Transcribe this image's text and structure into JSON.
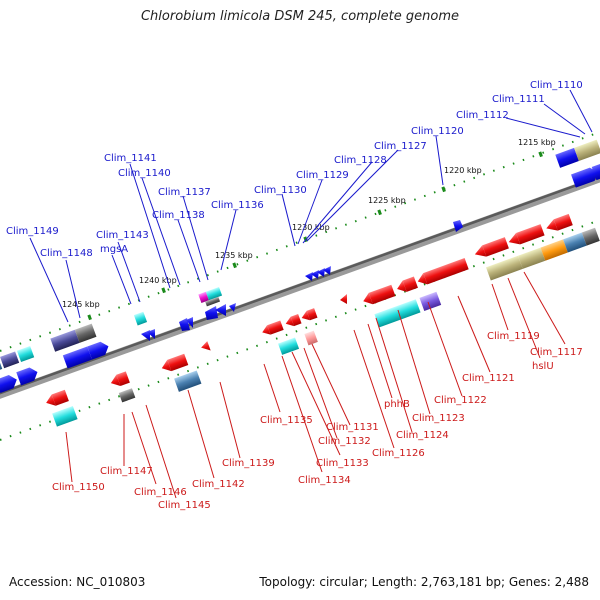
{
  "title": "Chlorobium limicola DSM 245, complete genome",
  "accession": "Accession: NC_010803",
  "summary": "Topology: circular; Length: 2,763,181 bp; Genes: 2,488",
  "colors": {
    "top_label": "#1a1acc",
    "bottom_label": "#cc1a1a",
    "backbone": "#777777",
    "tick": "#1a8a1a"
  },
  "scale_ticks": [
    "1215 kbp",
    "1220 kbp",
    "1225 kbp",
    "1230 kbp",
    "1235 kbp",
    "1240 kbp",
    "1245 kbp"
  ],
  "top_genes": [
    "Clim_1110",
    "Clim_1111",
    "Clim_1112",
    "Clim_1120",
    "Clim_1127",
    "Clim_1128",
    "Clim_1129",
    "Clim_1130",
    "Clim_1136",
    "Clim_1137",
    "Clim_1138",
    "Clim_1140",
    "Clim_1141",
    "Clim_1143",
    "mgsA",
    "Clim_1148",
    "Clim_1149"
  ],
  "bottom_genes": [
    "Clim_1117",
    "hslU",
    "Clim_1119",
    "Clim_1121",
    "Clim_1122",
    "Clim_1123",
    "Clim_1124",
    "phhB",
    "Clim_1126",
    "Clim_1131",
    "Clim_1132",
    "Clim_1133",
    "Clim_1134",
    "Clim_1135",
    "Clim_1139",
    "Clim_1142",
    "Clim_1145",
    "Clim_1146",
    "Clim_1147",
    "Clim_1150"
  ]
}
